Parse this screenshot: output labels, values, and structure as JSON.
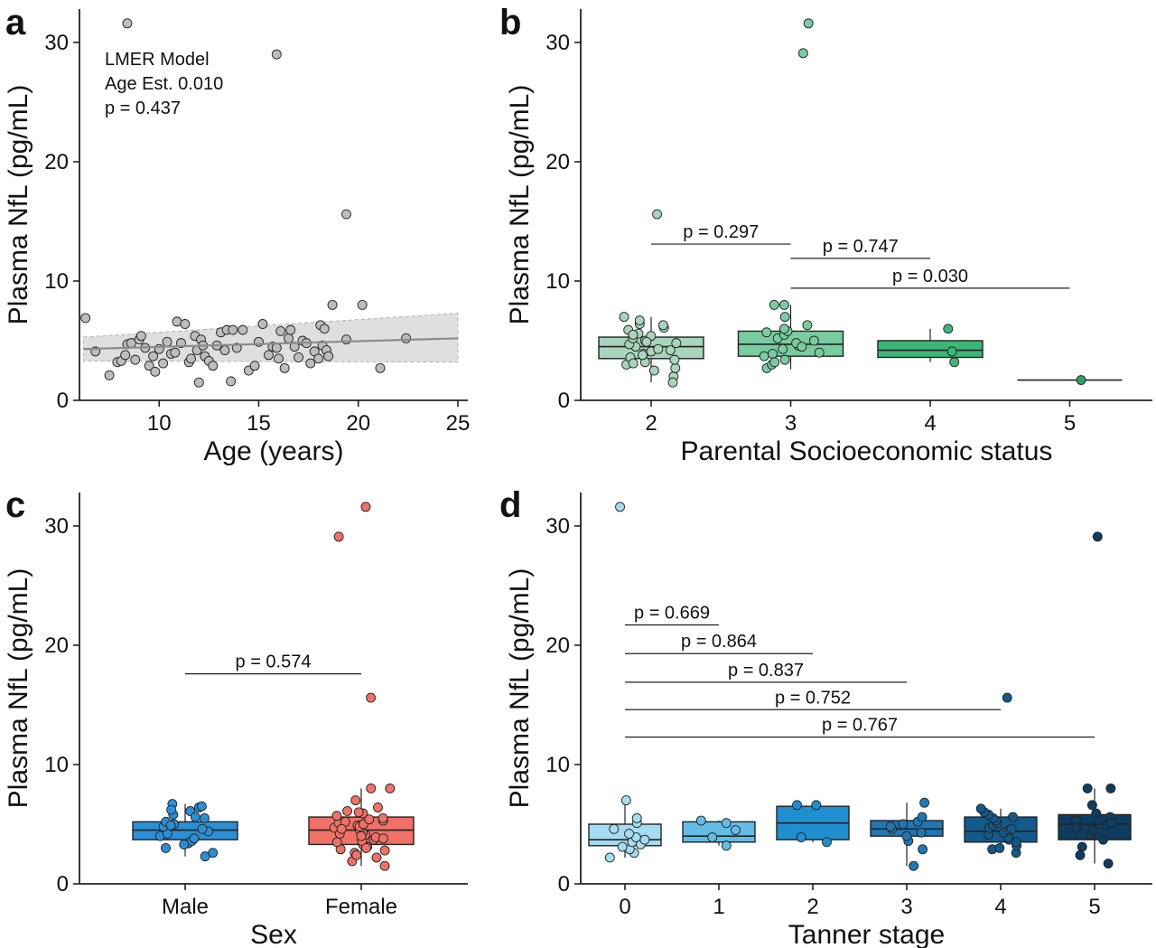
{
  "colors": {
    "scatter_point": "#bdbdbd",
    "ci_band": "#d9d9d9",
    "fit_line": "#8c8c8c",
    "ses": [
      "#a8d5bb",
      "#79cc9f",
      "#3bb878",
      "#2f9e63"
    ],
    "sex": [
      "#2b8fd6",
      "#f07167"
    ],
    "tanner": [
      "#a6dcf2",
      "#62bde6",
      "#1f8fd0",
      "#1f77b4",
      "#135a8c",
      "#0e3d61"
    ]
  },
  "chart_data": [
    {
      "panel": "a",
      "type": "scatter",
      "xlabel": "Age (years)",
      "ylabel": "Plasma NfL (pg/mL)",
      "xlim": [
        6,
        25.5
      ],
      "ylim": [
        0,
        32.8
      ],
      "xticks": [
        10,
        15,
        20,
        25
      ],
      "yticks": [
        0,
        10,
        20,
        30
      ],
      "annotation": [
        "LMER Model",
        "Age Est. 0.010",
        "p = 0.437"
      ],
      "fit": {
        "x": [
          6.2,
          25
        ],
        "y": [
          4.3,
          5.2
        ],
        "ci_low": [
          3.3,
          3.2
        ],
        "ci_high": [
          5.3,
          7.3
        ]
      },
      "points": [
        [
          6.3,
          6.9
        ],
        [
          6.8,
          4.1
        ],
        [
          7.5,
          2.1
        ],
        [
          7.9,
          3.2
        ],
        [
          8.1,
          3.3
        ],
        [
          8.3,
          3.8
        ],
        [
          8.4,
          4.7
        ],
        [
          8.6,
          4.8
        ],
        [
          8.8,
          3.4
        ],
        [
          9.0,
          5.1
        ],
        [
          9.1,
          5.4
        ],
        [
          9.3,
          4.4
        ],
        [
          9.5,
          2.9
        ],
        [
          9.7,
          3.7
        ],
        [
          9.8,
          2.4
        ],
        [
          10.0,
          4.3
        ],
        [
          10.2,
          3.1
        ],
        [
          10.4,
          4.9
        ],
        [
          10.6,
          3.9
        ],
        [
          10.8,
          4.0
        ],
        [
          10.9,
          6.6
        ],
        [
          11.1,
          4.8
        ],
        [
          11.3,
          6.4
        ],
        [
          11.5,
          3.2
        ],
        [
          11.6,
          3.5
        ],
        [
          11.8,
          5.4
        ],
        [
          11.9,
          4.2
        ],
        [
          12.0,
          1.5
        ],
        [
          12.1,
          5.1
        ],
        [
          12.2,
          4.6
        ],
        [
          12.3,
          3.7
        ],
        [
          12.5,
          3.3
        ],
        [
          12.7,
          2.9
        ],
        [
          12.9,
          4.6
        ],
        [
          13.1,
          5.7
        ],
        [
          13.3,
          4.2
        ],
        [
          13.4,
          5.9
        ],
        [
          13.6,
          1.6
        ],
        [
          13.7,
          5.9
        ],
        [
          13.9,
          4.4
        ],
        [
          14.2,
          5.9
        ],
        [
          14.5,
          2.5
        ],
        [
          14.8,
          2.9
        ],
        [
          15.0,
          4.9
        ],
        [
          15.2,
          6.4
        ],
        [
          15.5,
          3.8
        ],
        [
          15.7,
          4.5
        ],
        [
          15.9,
          4.4
        ],
        [
          16.0,
          3.5
        ],
        [
          16.1,
          5.8
        ],
        [
          16.3,
          2.7
        ],
        [
          16.5,
          5.2
        ],
        [
          16.6,
          5.9
        ],
        [
          16.8,
          4.5
        ],
        [
          17.0,
          3.6
        ],
        [
          17.2,
          5.0
        ],
        [
          17.4,
          4.8
        ],
        [
          17.6,
          3.1
        ],
        [
          17.8,
          4.1
        ],
        [
          18.0,
          3.5
        ],
        [
          18.1,
          6.3
        ],
        [
          18.2,
          4.6
        ],
        [
          18.3,
          6.0
        ],
        [
          18.4,
          4.2
        ],
        [
          18.5,
          3.7
        ],
        [
          18.7,
          8.0
        ],
        [
          19.4,
          5.1
        ],
        [
          20.2,
          8.0
        ],
        [
          21.1,
          2.7
        ],
        [
          22.4,
          5.2
        ],
        [
          8.4,
          31.6
        ],
        [
          15.9,
          29.0
        ],
        [
          19.4,
          15.6
        ]
      ]
    },
    {
      "panel": "b",
      "type": "box",
      "xlabel": "Parental Socioeconomic status",
      "ylabel": "Plasma NfL (pg/mL)",
      "categories": [
        "2",
        "3",
        "4",
        "5"
      ],
      "ylim": [
        0,
        32.8
      ],
      "yticks": [
        0,
        10,
        20,
        30
      ],
      "boxes": [
        {
          "q1": 3.5,
          "median": 4.5,
          "q3": 5.3,
          "whislo": 1.5,
          "whishi": 7.0,
          "points": [
            2.0,
            2.7,
            3.0,
            3.2,
            3.4,
            3.6,
            3.9,
            4.1,
            4.3,
            4.5,
            4.7,
            4.8,
            5.0,
            5.2,
            5.4,
            5.6,
            5.9,
            6.1,
            6.4,
            6.7,
            7.0,
            1.5,
            3.1,
            4.2,
            4.9,
            5.5,
            2.5,
            3.8,
            6.3,
            15.6
          ]
        },
        {
          "q1": 3.7,
          "median": 4.7,
          "q3": 5.8,
          "whislo": 2.6,
          "whishi": 8.0,
          "points": [
            2.7,
            3.0,
            3.4,
            3.7,
            4.0,
            4.3,
            4.6,
            4.8,
            5.0,
            5.2,
            5.5,
            5.8,
            6.0,
            6.3,
            7.0,
            8.0,
            8.0,
            3.9,
            4.5,
            5.7,
            3.2,
            29.1,
            31.6
          ]
        },
        {
          "q1": 3.6,
          "median": 4.2,
          "q3": 5.0,
          "whislo": 3.2,
          "whishi": 6.0,
          "points": [
            3.2,
            4.1,
            6.0
          ]
        },
        {
          "q1": 1.7,
          "median": 1.7,
          "q3": 1.7,
          "whislo": 1.7,
          "whishi": 1.7,
          "points": [
            1.7
          ]
        }
      ],
      "comparisons": [
        {
          "from": 0,
          "to": 1,
          "y": 13.1,
          "label": "p = 0.297"
        },
        {
          "from": 1,
          "to": 2,
          "y": 11.9,
          "label": "p = 0.747"
        },
        {
          "from": 1,
          "to": 3,
          "y": 9.4,
          "label": "p = 0.030"
        }
      ]
    },
    {
      "panel": "c",
      "type": "box",
      "xlabel": "Sex",
      "ylabel": "Plasma NfL (pg/mL)",
      "categories": [
        "Male",
        "Female"
      ],
      "ylim": [
        0,
        32.8
      ],
      "yticks": [
        0,
        10,
        20,
        30
      ],
      "boxes": [
        {
          "q1": 3.7,
          "median": 4.5,
          "q3": 5.2,
          "whislo": 2.3,
          "whishi": 6.7,
          "points": [
            2.3,
            2.6,
            3.0,
            3.4,
            3.6,
            3.8,
            4.0,
            4.2,
            4.4,
            4.6,
            4.8,
            5.0,
            5.2,
            5.5,
            5.8,
            6.1,
            6.4,
            6.7,
            3.3,
            4.9,
            5.6,
            6.2,
            6.5
          ]
        },
        {
          "q1": 3.3,
          "median": 4.5,
          "q3": 5.6,
          "whislo": 1.5,
          "whishi": 8.0,
          "points": [
            1.5,
            1.9,
            2.2,
            2.6,
            2.9,
            3.1,
            3.3,
            3.5,
            3.7,
            3.9,
            4.1,
            4.3,
            4.5,
            4.7,
            4.9,
            5.1,
            5.3,
            5.5,
            5.7,
            5.9,
            6.1,
            6.4,
            7.0,
            8.0,
            8.0,
            2.8,
            3.6,
            4.2,
            4.8,
            5.2,
            3.0,
            4.0,
            5.0,
            6.0,
            2.4,
            3.8,
            4.6,
            5.4,
            15.6,
            29.1,
            31.6
          ]
        }
      ],
      "comparisons": [
        {
          "from": 0,
          "to": 1,
          "y": 17.6,
          "label": "p = 0.574"
        }
      ]
    },
    {
      "panel": "d",
      "type": "box",
      "xlabel": "Tanner stage",
      "ylabel": "Plasma NfL (pg/mL)",
      "categories": [
        "0",
        "1",
        "2",
        "3",
        "4",
        "5"
      ],
      "ylim": [
        0,
        32.8
      ],
      "yticks": [
        0,
        10,
        20,
        30
      ],
      "boxes": [
        {
          "q1": 3.2,
          "median": 3.7,
          "q3": 5.0,
          "whislo": 2.2,
          "whishi": 7.0,
          "points": [
            2.2,
            2.6,
            2.9,
            3.1,
            3.3,
            3.5,
            3.7,
            3.9,
            4.2,
            4.6,
            5.1,
            5.5,
            7.0,
            31.6
          ]
        },
        {
          "q1": 3.5,
          "median": 4.0,
          "q3": 5.2,
          "whislo": 3.2,
          "whishi": 5.3,
          "points": [
            3.2,
            3.9,
            4.5,
            5.1,
            5.3
          ]
        },
        {
          "q1": 3.7,
          "median": 5.1,
          "q3": 6.5,
          "whislo": 3.5,
          "whishi": 6.6,
          "points": [
            3.5,
            3.9,
            6.6,
            6.6
          ]
        },
        {
          "q1": 4.0,
          "median": 4.6,
          "q3": 5.3,
          "whislo": 1.5,
          "whishi": 6.8,
          "points": [
            1.5,
            2.9,
            3.6,
            4.0,
            4.3,
            4.6,
            4.8,
            5.0,
            5.2,
            5.6,
            6.8
          ]
        },
        {
          "q1": 3.5,
          "median": 4.4,
          "q3": 5.6,
          "whislo": 2.6,
          "whishi": 6.3,
          "points": [
            2.6,
            2.9,
            3.2,
            3.5,
            3.7,
            3.9,
            4.1,
            4.3,
            4.5,
            4.7,
            4.9,
            5.1,
            5.3,
            5.5,
            5.8,
            6.0,
            6.3,
            3.0,
            4.6,
            5.6,
            15.6
          ]
        },
        {
          "q1": 3.7,
          "median": 5.0,
          "q3": 5.8,
          "whislo": 1.7,
          "whishi": 8.0,
          "points": [
            1.7,
            2.4,
            3.1,
            3.7,
            4.1,
            4.5,
            4.9,
            5.3,
            5.6,
            5.9,
            6.6,
            8.0,
            8.0,
            4.7,
            5.1,
            29.1
          ]
        }
      ],
      "comparisons": [
        {
          "from": 0,
          "to": 1,
          "y": 21.7,
          "label": "p = 0.669"
        },
        {
          "from": 0,
          "to": 2,
          "y": 19.3,
          "label": "p = 0.864"
        },
        {
          "from": 0,
          "to": 3,
          "y": 16.9,
          "label": "p = 0.837"
        },
        {
          "from": 0,
          "to": 4,
          "y": 14.6,
          "label": "p = 0.752"
        },
        {
          "from": 0,
          "to": 5,
          "y": 12.3,
          "label": "p = 0.767"
        }
      ]
    }
  ]
}
